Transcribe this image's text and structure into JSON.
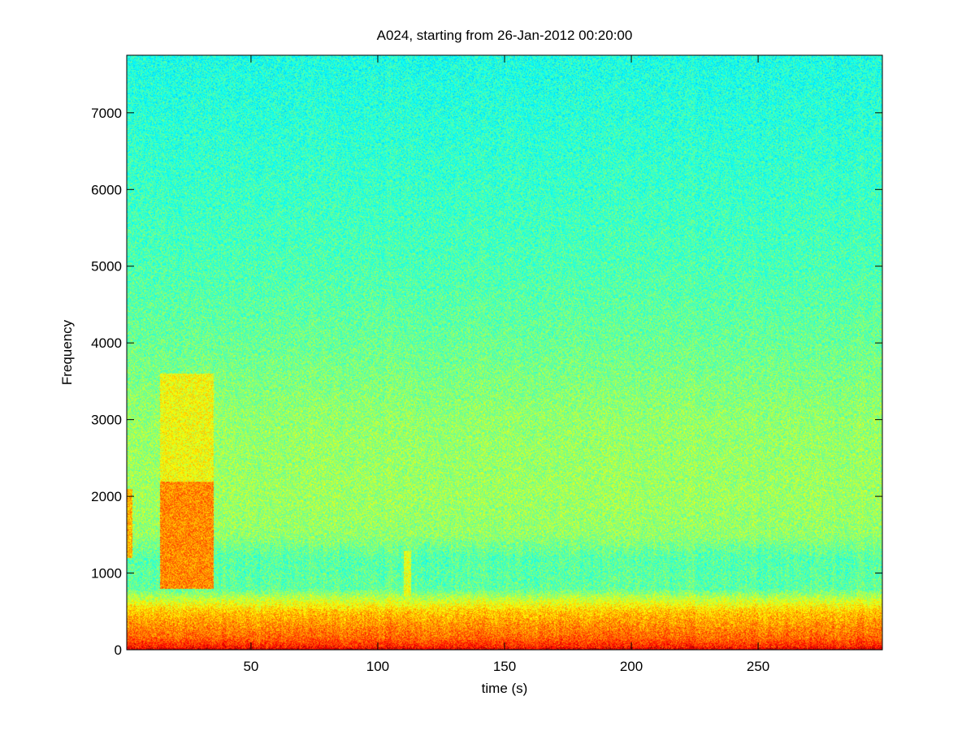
{
  "chart_data": {
    "type": "heatmap",
    "title": "A024, starting from 26-Jan-2012 00:20:00",
    "xlabel": "time (s)",
    "ylabel": "Frequency",
    "xlim": [
      1,
      299
    ],
    "ylim": [
      0,
      7750
    ],
    "x_ticks": [
      50,
      100,
      150,
      200,
      250
    ],
    "y_ticks": [
      0,
      1000,
      2000,
      3000,
      4000,
      5000,
      6000,
      7000
    ],
    "colormap": "jet",
    "grid": false,
    "colorbar": false,
    "intensity_profile": {
      "description": "relative power (0 = blue, 1 = dark red) vs frequency band",
      "frequency": [
        0,
        40,
        150,
        300,
        500,
        650,
        800,
        1200,
        1500,
        2000,
        3000,
        4000,
        5000,
        7750
      ],
      "level": [
        0.96,
        0.85,
        0.78,
        0.74,
        0.68,
        0.58,
        0.47,
        0.46,
        0.52,
        0.53,
        0.52,
        0.48,
        0.45,
        0.4
      ]
    },
    "events": [
      {
        "t_start": 14,
        "t_end": 35,
        "f_low": 800,
        "f_high": 2200,
        "level": 0.74
      },
      {
        "t_start": 14,
        "t_end": 35,
        "f_low": 2200,
        "f_high": 3600,
        "level": 0.62
      },
      {
        "t_start": 1,
        "t_end": 3,
        "f_low": 1200,
        "f_high": 2100,
        "level": 0.7
      },
      {
        "t_start": 110,
        "t_end": 113,
        "f_low": 700,
        "f_high": 1300,
        "level": 0.6
      }
    ]
  }
}
